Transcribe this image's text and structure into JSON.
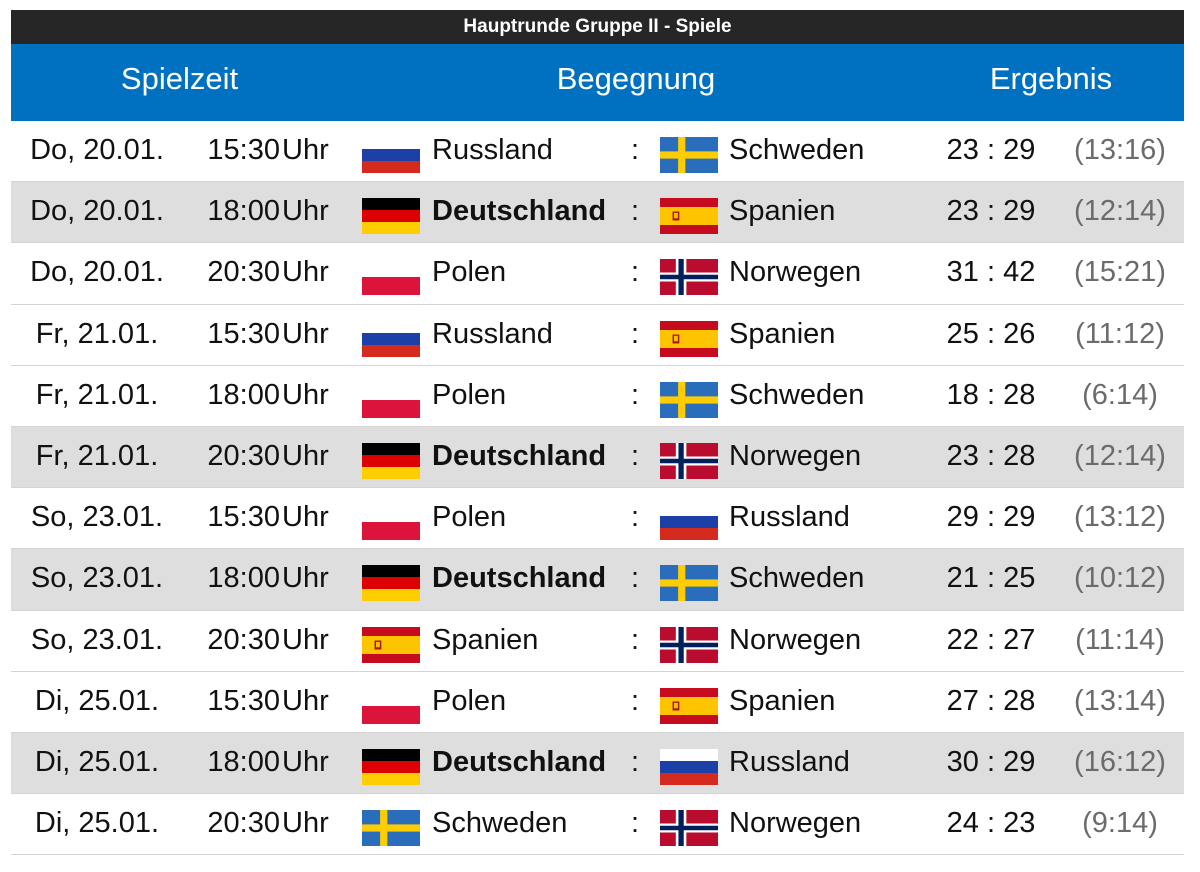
{
  "title": "Hauptrunde Gruppe II - Spiele",
  "headers": {
    "time": "Spielzeit",
    "match": "Begegnung",
    "result": "Ergebnis"
  },
  "colors": {
    "header_blue": "#0070c0",
    "title_bar": "#262626",
    "alt_row": "#dedede"
  },
  "rows": [
    {
      "date": "Do, 20.01.",
      "time": "15:30",
      "uhr": "Uhr",
      "home": "Russland",
      "home_flag": "flag-russia-icon",
      "sep": ":",
      "away": "Schweden",
      "away_flag": "flag-sweden-icon",
      "score": "23 : 29",
      "half": "(13:16)",
      "shaded": false,
      "home_bold": false
    },
    {
      "date": "Do, 20.01.",
      "time": "18:00",
      "uhr": "Uhr",
      "home": "Deutschland",
      "home_flag": "flag-germany-icon",
      "sep": ":",
      "away": "Spanien",
      "away_flag": "flag-spain-icon",
      "score": "23 : 29",
      "half": "(12:14)",
      "shaded": true,
      "home_bold": true
    },
    {
      "date": "Do, 20.01.",
      "time": "20:30",
      "uhr": "Uhr",
      "home": "Polen",
      "home_flag": "flag-poland-icon",
      "sep": ":",
      "away": "Norwegen",
      "away_flag": "flag-norway-icon",
      "score": "31 : 42",
      "half": "(15:21)",
      "shaded": false,
      "home_bold": false
    },
    {
      "date": "Fr, 21.01.",
      "time": "15:30",
      "uhr": "Uhr",
      "home": "Russland",
      "home_flag": "flag-russia-icon",
      "sep": ":",
      "away": "Spanien",
      "away_flag": "flag-spain-icon",
      "score": "25 : 26",
      "half": "(11:12)",
      "shaded": false,
      "home_bold": false
    },
    {
      "date": "Fr, 21.01.",
      "time": "18:00",
      "uhr": "Uhr",
      "home": "Polen",
      "home_flag": "flag-poland-icon",
      "sep": ":",
      "away": "Schweden",
      "away_flag": "flag-sweden-icon",
      "score": "18 : 28",
      "half": "(6:14)",
      "shaded": false,
      "home_bold": false
    },
    {
      "date": "Fr, 21.01.",
      "time": "20:30",
      "uhr": "Uhr",
      "home": "Deutschland",
      "home_flag": "flag-germany-icon",
      "sep": ":",
      "away": "Norwegen",
      "away_flag": "flag-norway-icon",
      "score": "23 : 28",
      "half": "(12:14)",
      "shaded": true,
      "home_bold": true
    },
    {
      "date": "So, 23.01.",
      "time": "15:30",
      "uhr": "Uhr",
      "home": "Polen",
      "home_flag": "flag-poland-icon",
      "sep": ":",
      "away": "Russland",
      "away_flag": "flag-russia-icon",
      "score": "29 : 29",
      "half": "(13:12)",
      "shaded": false,
      "home_bold": false
    },
    {
      "date": "So, 23.01.",
      "time": "18:00",
      "uhr": "Uhr",
      "home": "Deutschland",
      "home_flag": "flag-germany-icon",
      "sep": ":",
      "away": "Schweden",
      "away_flag": "flag-sweden-icon",
      "score": "21 : 25",
      "half": "(10:12)",
      "shaded": true,
      "home_bold": true
    },
    {
      "date": "So, 23.01.",
      "time": "20:30",
      "uhr": "Uhr",
      "home": "Spanien",
      "home_flag": "flag-spain-icon",
      "sep": ":",
      "away": "Norwegen",
      "away_flag": "flag-norway-icon",
      "score": "22 : 27",
      "half": "(11:14)",
      "shaded": false,
      "home_bold": false
    },
    {
      "date": "Di, 25.01.",
      "time": "15:30",
      "uhr": "Uhr",
      "home": "Polen",
      "home_flag": "flag-poland-icon",
      "sep": ":",
      "away": "Spanien",
      "away_flag": "flag-spain-icon",
      "score": "27 : 28",
      "half": "(13:14)",
      "shaded": false,
      "home_bold": false
    },
    {
      "date": "Di, 25.01.",
      "time": "18:00",
      "uhr": "Uhr",
      "home": "Deutschland",
      "home_flag": "flag-germany-icon",
      "sep": ":",
      "away": "Russland",
      "away_flag": "flag-russia-icon",
      "score": "30 : 29",
      "half": "(16:12)",
      "shaded": true,
      "home_bold": true
    },
    {
      "date": "Di, 25.01.",
      "time": "20:30",
      "uhr": "Uhr",
      "home": "Schweden",
      "home_flag": "flag-sweden-icon",
      "sep": ":",
      "away": "Norwegen",
      "away_flag": "flag-norway-icon",
      "score": "24 : 23",
      "half": "(9:14)",
      "shaded": false,
      "home_bold": false
    }
  ]
}
